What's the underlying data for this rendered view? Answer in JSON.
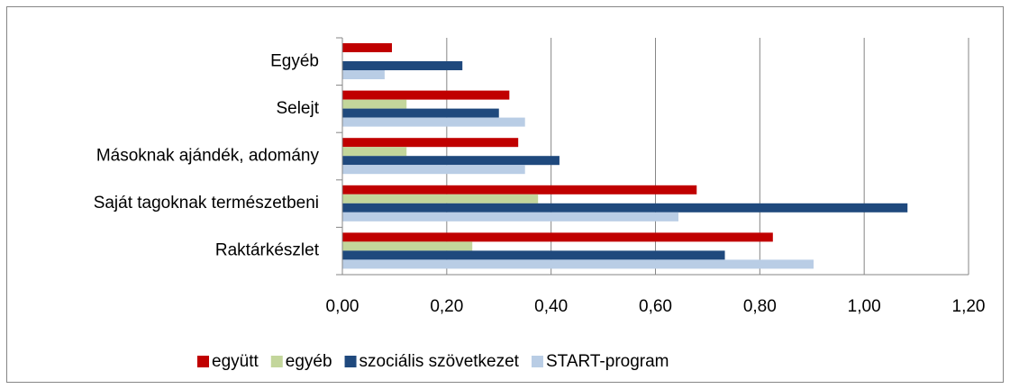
{
  "chart_data": {
    "type": "hbar",
    "categories": [
      "Egyéb",
      "Selejt",
      "Másoknak ajándék, adomány",
      "Saját tagoknak természetbeni",
      "Raktárkészlet"
    ],
    "series": [
      {
        "name": "együtt",
        "color": "#c00000",
        "values": [
          0.095,
          0.32,
          0.337,
          0.679,
          0.825
        ]
      },
      {
        "name": "egyéb",
        "color": "#c3d69b",
        "values": [
          0,
          0.123,
          0.123,
          0.375,
          0.249
        ]
      },
      {
        "name": "szociális szövetkezet",
        "color": "#1f497d",
        "values": [
          0.23,
          0.3,
          0.416,
          1.083,
          0.733
        ]
      },
      {
        "name": "START-program",
        "color": "#b9cde5",
        "values": [
          0.081,
          0.35,
          0.35,
          0.644,
          0.903
        ]
      }
    ],
    "xlim": [
      0,
      1.2
    ],
    "xticks": [
      {
        "value": 0,
        "label": "0,00"
      },
      {
        "value": 0.2,
        "label": "0,20"
      },
      {
        "value": 0.4,
        "label": "0,40"
      },
      {
        "value": 0.6,
        "label": "0,60"
      },
      {
        "value": 0.8,
        "label": "0,80"
      },
      {
        "value": 1.0,
        "label": "1,00"
      },
      {
        "value": 1.2,
        "label": "1,20"
      }
    ],
    "grid": true,
    "legend": "bottom"
  }
}
